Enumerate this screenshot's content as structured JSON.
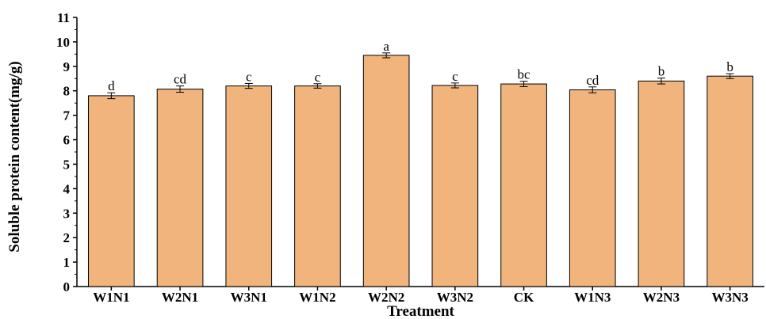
{
  "chart_data": {
    "type": "bar",
    "categories": [
      "W1N1",
      "W2N1",
      "W3N1",
      "W1N2",
      "W2N2",
      "W3N2",
      "CK",
      "W1N3",
      "W2N3",
      "W3N3"
    ],
    "values": [
      7.8,
      8.07,
      8.2,
      8.2,
      9.45,
      8.22,
      8.28,
      8.04,
      8.4,
      8.6
    ],
    "errors": [
      0.12,
      0.13,
      0.1,
      0.09,
      0.1,
      0.1,
      0.11,
      0.12,
      0.12,
      0.1
    ],
    "significance": [
      "d",
      "cd",
      "c",
      "c",
      "a",
      "c",
      "bc",
      "cd",
      "b",
      "b"
    ],
    "title": "",
    "xlabel": "Treatment",
    "ylabel": "Soluble protein content(mg/g)",
    "ylim": [
      0,
      11
    ],
    "yticks": [
      "0",
      "1",
      "2",
      "3",
      "4",
      "5",
      "6",
      "7",
      "8",
      "9",
      "10",
      "11"
    ],
    "grid": false,
    "legend": "none",
    "bar_color": "#F0B47C",
    "edge_color": "#000000"
  }
}
